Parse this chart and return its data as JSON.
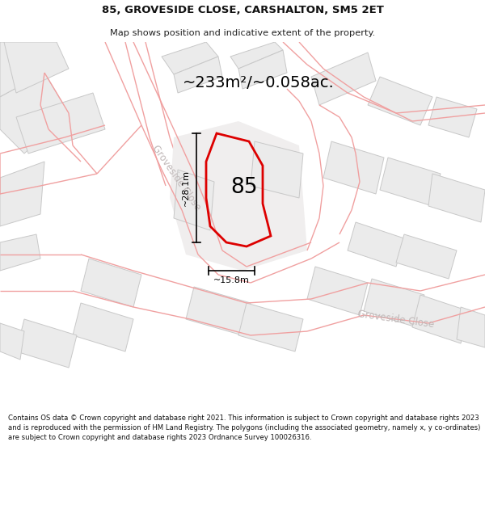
{
  "title_line1": "85, GROVESIDE CLOSE, CARSHALTON, SM5 2ET",
  "title_line2": "Map shows position and indicative extent of the property.",
  "area_text": "~233m²/~0.058ac.",
  "label_85": "85",
  "dim_vertical": "~28.1m",
  "dim_horizontal": "~15.8m",
  "street_label_diag": "Groveside Close",
  "street_label_bottom": "Groveside Close",
  "footer_text": "Contains OS data © Crown copyright and database right 2021. This information is subject to Crown copyright and database rights 2023 and is reproduced with the permission of HM Land Registry. The polygons (including the associated geometry, namely x, y co-ordinates) are subject to Crown copyright and database rights 2023 Ordnance Survey 100026316.",
  "bg_color": "#ffffff",
  "building_fill": "#ebebeb",
  "building_edge_gray": "#c8c8c8",
  "building_edge_pink": "#e8a0a0",
  "road_line_color": "#f0a0a0",
  "red_plot_color": "#dd0000",
  "plot_fill": "#f5f0f0",
  "street_text_color": "#c0b8b8",
  "header_bg": "#ffffff",
  "footer_bg": "#ffffff"
}
